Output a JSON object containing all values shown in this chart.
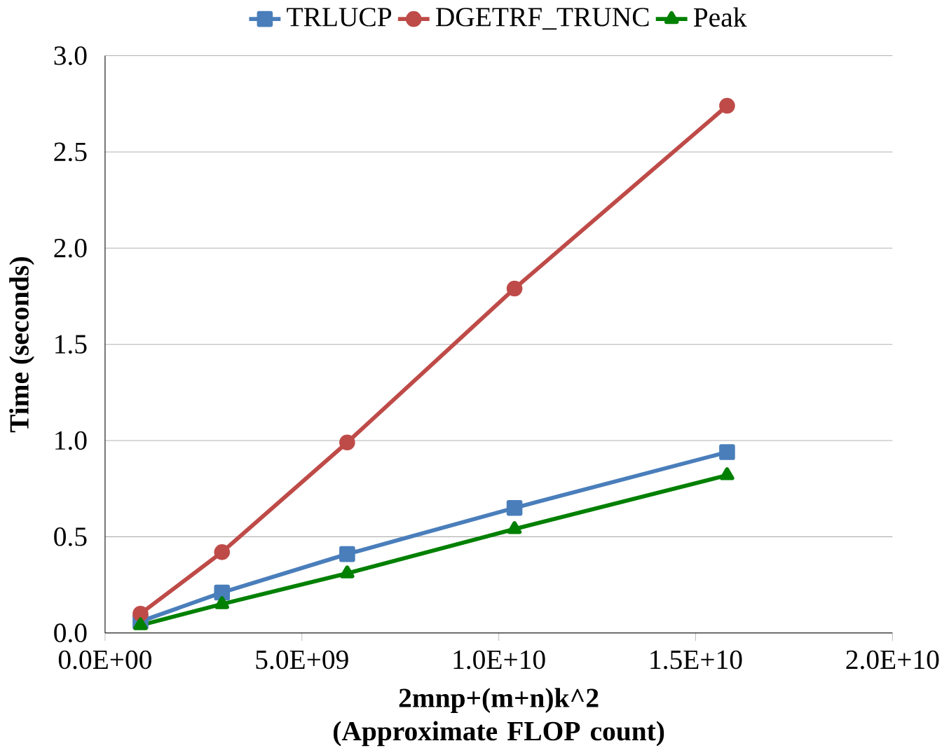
{
  "chart_data": {
    "type": "line",
    "xlabel": "2mnp+(m+n)k^2 (Approximate FLOP count)",
    "ylabel": "Time (seconds)",
    "x": [
      900000000,
      2970000000,
      6150000000,
      10400000000,
      15800000000
    ],
    "series": [
      {
        "name": "TRLUCP",
        "color": "#4a7ebb",
        "marker": "square",
        "values": [
          0.06,
          0.21,
          0.41,
          0.65,
          0.94
        ]
      },
      {
        "name": "DGETRF_TRUNC",
        "color": "#be4b48",
        "marker": "circle",
        "values": [
          0.1,
          0.42,
          0.99,
          1.79,
          2.74
        ]
      },
      {
        "name": "Peak",
        "color": "#008000",
        "marker": "triangle",
        "values": [
          0.04,
          0.15,
          0.31,
          0.54,
          0.82
        ]
      }
    ],
    "xlim": [
      0,
      20000000000
    ],
    "xticks": [
      {
        "value": 0,
        "label": "0.0E+00"
      },
      {
        "value": 5000000000,
        "label": "5.0E+09"
      },
      {
        "value": 10000000000,
        "label": "1.0E+10"
      },
      {
        "value": 15000000000,
        "label": "1.5E+10"
      },
      {
        "value": 20000000000,
        "label": "2.0E+10"
      }
    ],
    "ylim": [
      0,
      3
    ],
    "yticks": [
      {
        "value": 0,
        "label": "0.0"
      },
      {
        "value": 0.5,
        "label": "0.5"
      },
      {
        "value": 1,
        "label": "1.0"
      },
      {
        "value": 1.5,
        "label": "1.5"
      },
      {
        "value": 2,
        "label": "2.0"
      },
      {
        "value": 2.5,
        "label": "2.5"
      },
      {
        "value": 3,
        "label": "3.0"
      }
    ],
    "grid": "y",
    "legend": "top",
    "line_style": "solid"
  }
}
